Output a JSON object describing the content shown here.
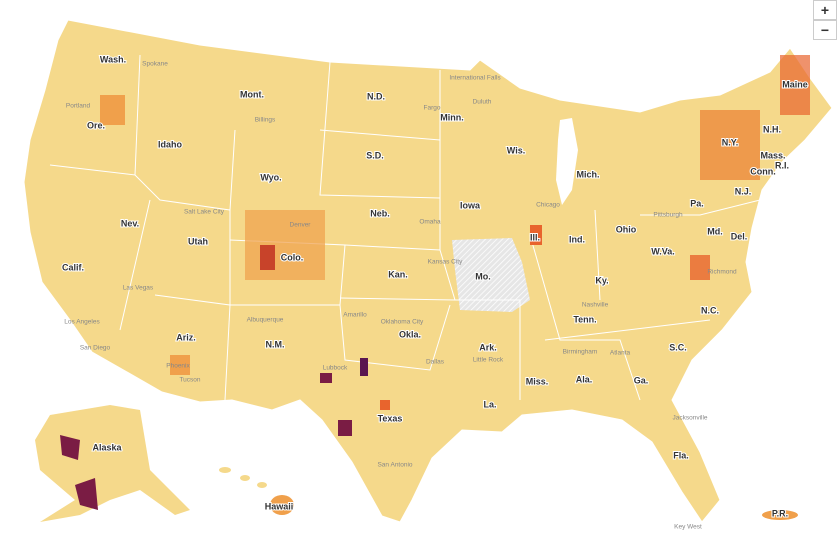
{
  "controls": {
    "zoom_in": "+",
    "zoom_out": "−"
  },
  "states": [
    "Wash.",
    "Mont.",
    "N.D.",
    "Minn.",
    "Wis.",
    "Mich.",
    "Ore.",
    "Idaho",
    "Wyo.",
    "S.D.",
    "Neb.",
    "Iowa",
    "Ill.",
    "Ind.",
    "Ohio",
    "Pa.",
    "N.Y.",
    "Maine",
    "N.H.",
    "Mass.",
    "Conn.",
    "R.I.",
    "N.J.",
    "Md.",
    "Del.",
    "W.Va.",
    "Ky.",
    "Tenn.",
    "N.C.",
    "S.C.",
    "Ga.",
    "Ala.",
    "Miss.",
    "La.",
    "Ark.",
    "Mo.",
    "Kan.",
    "Okla.",
    "Texas",
    "N.M.",
    "Ariz.",
    "Utah",
    "Colo.",
    "Nev.",
    "Calif.",
    "Fla.",
    "Alaska",
    "Hawaii",
    "P.R."
  ],
  "cities": [
    "Spokane",
    "Portland",
    "Salt Lake City",
    "Denver",
    "Las Vegas",
    "Los Angeles",
    "San Diego",
    "Phoenix",
    "Tucson",
    "Albuquerque",
    "Lubbock",
    "Amarillo",
    "Oklahoma City",
    "Dallas",
    "San Antonio",
    "Kansas City",
    "Omaha",
    "Chicago",
    "Nashville",
    "Atlanta",
    "Jacksonville",
    "Key West",
    "Pittsburgh",
    "Billings",
    "Fargo",
    "Duluth",
    "International Falls",
    "Little Rock",
    "Birmingham",
    "Richmond"
  ]
}
